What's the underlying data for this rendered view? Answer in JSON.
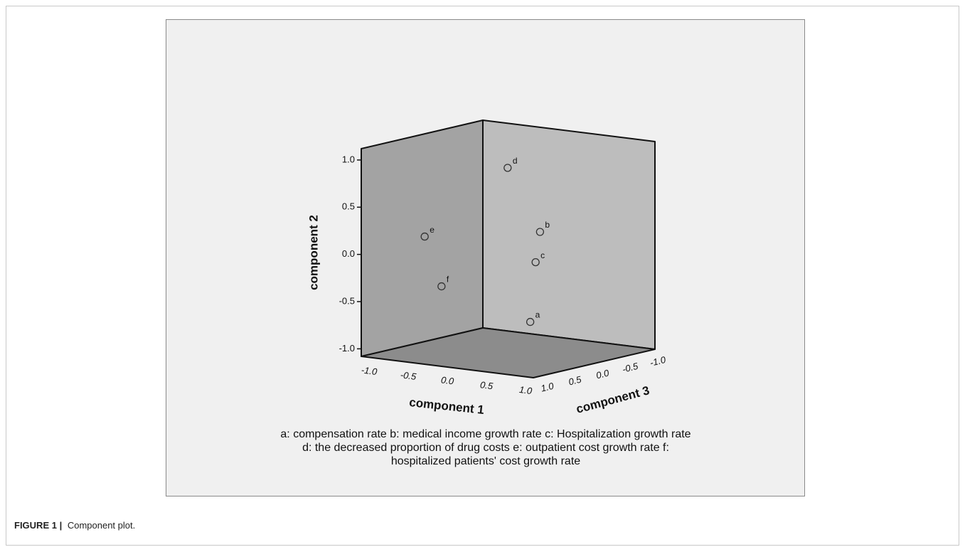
{
  "chart_data": {
    "type": "scatter3d",
    "xlabel": "component 1",
    "ylabel": "component 2",
    "zlabel": "component 3",
    "xlim": [
      -1.1,
      1.1
    ],
    "ylim": [
      -1.08,
      1.12
    ],
    "zlim": [
      -1.1,
      1.1
    ],
    "xticks": [
      {
        "value": -1,
        "label": "-1.0"
      },
      -0.5,
      {
        "value": 0,
        "label": "0.0"
      },
      0.5,
      {
        "value": 1,
        "label": "1.0"
      }
    ],
    "yticks": [
      {
        "value": -1,
        "label": "-1.0"
      },
      -0.5,
      {
        "value": 0,
        "label": "0.0"
      },
      0.5,
      {
        "value": 1,
        "label": "1.0"
      }
    ],
    "zticks": [
      {
        "value": 1,
        "label": "1.0"
      },
      0.5,
      {
        "value": 0,
        "label": "0.0"
      },
      -0.5,
      {
        "value": -1,
        "label": "-1.0"
      }
    ],
    "points": [
      {
        "label": "a",
        "x": 0.7,
        "y": -0.6,
        "z": 0.59
      },
      {
        "label": "b",
        "x": 0.5,
        "y": 0.27,
        "z": 0.13
      },
      {
        "label": "c",
        "x": 0.5,
        "y": -0.04,
        "z": 0.21
      },
      {
        "label": "d",
        "x": 0.1,
        "y": 0.91,
        "z": 0.15
      },
      {
        "label": "e",
        "x": -0.6,
        "y": 0.18,
        "z": 0.66
      },
      {
        "label": "f",
        "x": -0.3,
        "y": -0.3,
        "z": 0.78
      }
    ],
    "legend_lines": [
      "a: compensation rate   b: medical income growth rate   c: Hospitalization growth rate",
      "d: the decreased proportion of drug costs   e: outpatient cost growth rate   f:",
      "hospitalized patients' cost growth rate"
    ]
  },
  "caption": {
    "label": "FIGURE 1 |",
    "text": "Component plot."
  }
}
